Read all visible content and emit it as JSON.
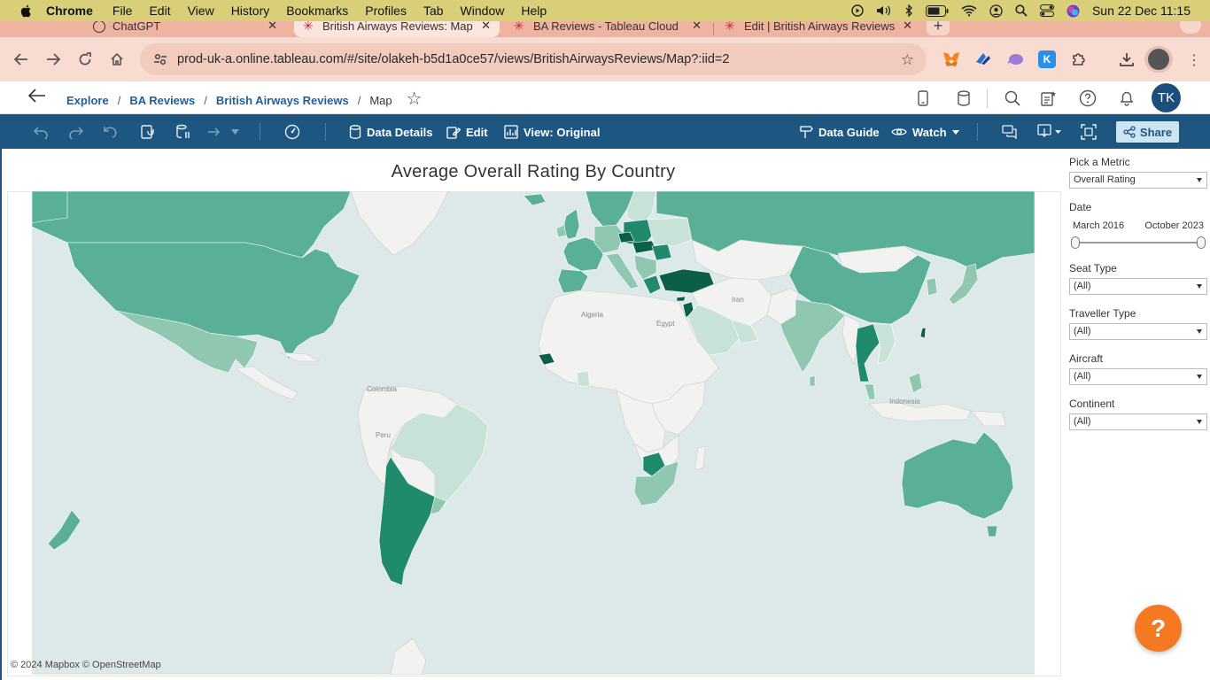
{
  "mac_menu": {
    "app": "Chrome",
    "items": [
      "File",
      "Edit",
      "View",
      "History",
      "Bookmarks",
      "Profiles",
      "Tab",
      "Window",
      "Help"
    ],
    "datetime": "Sun 22 Dec  11:15"
  },
  "tabs": [
    {
      "title": "ChatGPT",
      "active": false
    },
    {
      "title": "British Airways Reviews: Map",
      "active": true
    },
    {
      "title": "BA Reviews - Tableau Cloud",
      "active": false
    },
    {
      "title": "Edit | British Airways Reviews",
      "active": false
    }
  ],
  "browser": {
    "url": "prod-uk-a.online.tableau.com/#/site/olakeh-b5d1a0ce57/views/BritishAirwaysReviews/Map?:iid=2",
    "extensions": [
      {
        "name": "metamask-icon",
        "color": "#f08a24",
        "glyph": "🦊"
      },
      {
        "name": "extension-blue-icon",
        "color": "#2a6fd6",
        "glyph": ""
      },
      {
        "name": "extension-purple-icon",
        "color": "#9b7bd8",
        "glyph": ""
      },
      {
        "name": "extension-k-icon",
        "color": "#2a8fe8",
        "glyph": "K"
      }
    ]
  },
  "tableau_header": {
    "breadcrumbs": [
      "Explore",
      "BA Reviews",
      "British Airways Reviews"
    ],
    "current": "Map",
    "avatar_initials": "TK"
  },
  "tableau_toolbar": {
    "data_details": "Data Details",
    "edit": "Edit",
    "view": "View: Original",
    "data_guide": "Data Guide",
    "watch": "Watch",
    "share": "Share"
  },
  "viz": {
    "title": "Average Overall Rating By Country",
    "map_credit": "© 2024 Mapbox  © OpenStreetMap",
    "map_labels": [
      "Algeria",
      "Egypt",
      "Iran",
      "Colombia",
      "Peru",
      "Indonesia"
    ],
    "colors": {
      "ocean": "#dde8e8",
      "no_data": "#f2f2f2",
      "light": "#c9e2d9",
      "mid_light": "#8fc7b0",
      "mid": "#5ab096",
      "dark": "#1f8a6c",
      "darkest": "#0b5f48"
    }
  },
  "filters": {
    "metric": {
      "label": "Pick a Metric",
      "value": "Overall Rating"
    },
    "date": {
      "label": "Date",
      "start": "March 2016",
      "end": "October 2023",
      "range_fraction": [
        0,
        1
      ]
    },
    "seat_type": {
      "label": "Seat Type",
      "value": "(All)"
    },
    "traveller_type": {
      "label": "Traveller Type",
      "value": "(All)"
    },
    "aircraft": {
      "label": "Aircraft",
      "value": "(All)"
    },
    "continent": {
      "label": "Continent",
      "value": "(All)"
    }
  },
  "help_button": "?"
}
